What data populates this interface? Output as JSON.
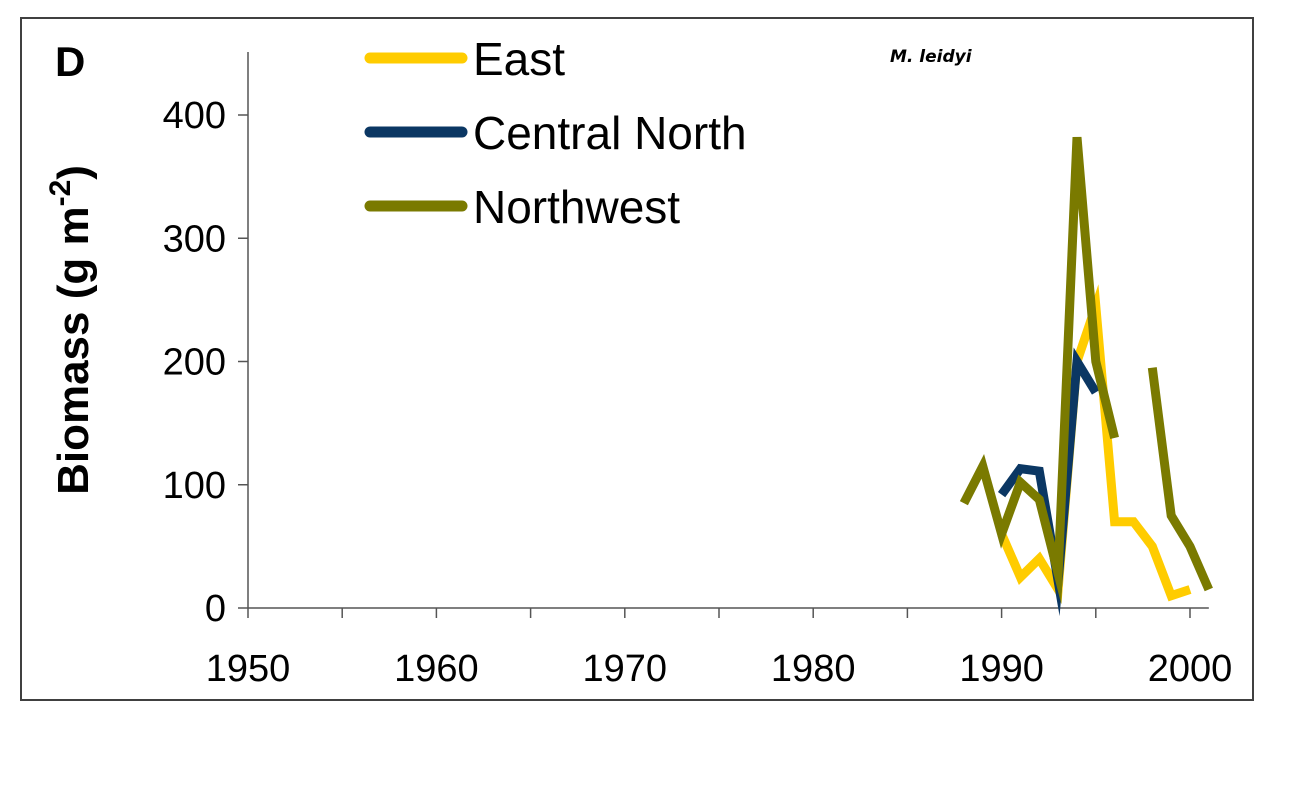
{
  "chart_data": {
    "type": "line",
    "panel_label": "D",
    "species_label": "M. leidyi",
    "ylabel_main": "Biomass (g m",
    "ylabel_sup": "-2",
    "ylabel_close": ")",
    "xlabel": "",
    "xlim": [
      1950,
      2001
    ],
    "ylim": [
      0,
      450
    ],
    "x_ticks": [
      1950,
      1960,
      1970,
      1980,
      1990,
      2000
    ],
    "x_minor_ticks": [
      1955,
      1965,
      1975,
      1985,
      1995
    ],
    "y_ticks": [
      0,
      100,
      200,
      300,
      400
    ],
    "legend_position": "top-left",
    "series": [
      {
        "name": "East",
        "color": "#FFCC00",
        "points": [
          [
            1990,
            60
          ],
          [
            1991,
            25
          ],
          [
            1992,
            40
          ],
          [
            1993,
            15
          ],
          [
            1994,
            200
          ],
          [
            1995,
            245
          ],
          [
            1996,
            70
          ],
          [
            1997,
            70
          ],
          [
            1998,
            50
          ],
          [
            1999,
            10
          ],
          [
            2000,
            15
          ]
        ]
      },
      {
        "name": "Central North",
        "color": "#0B3763",
        "points": [
          [
            1990,
            92
          ],
          [
            1991,
            113
          ],
          [
            1992,
            111
          ],
          [
            1993,
            22
          ],
          [
            1994,
            200
          ],
          [
            1995,
            175
          ]
        ]
      },
      {
        "name": "Northwest",
        "color": "#7A7A00",
        "segments": [
          [
            [
              1988,
              85
            ],
            [
              1989,
              115
            ],
            [
              1990,
              60
            ],
            [
              1991,
              102
            ],
            [
              1992,
              88
            ],
            [
              1993,
              28
            ],
            [
              1994,
              382
            ],
            [
              1995,
              200
            ],
            [
              1996,
              138
            ]
          ],
          [
            [
              1998,
              195
            ],
            [
              1999,
              75
            ],
            [
              2000,
              50
            ],
            [
              2001,
              15
            ]
          ]
        ]
      }
    ]
  }
}
